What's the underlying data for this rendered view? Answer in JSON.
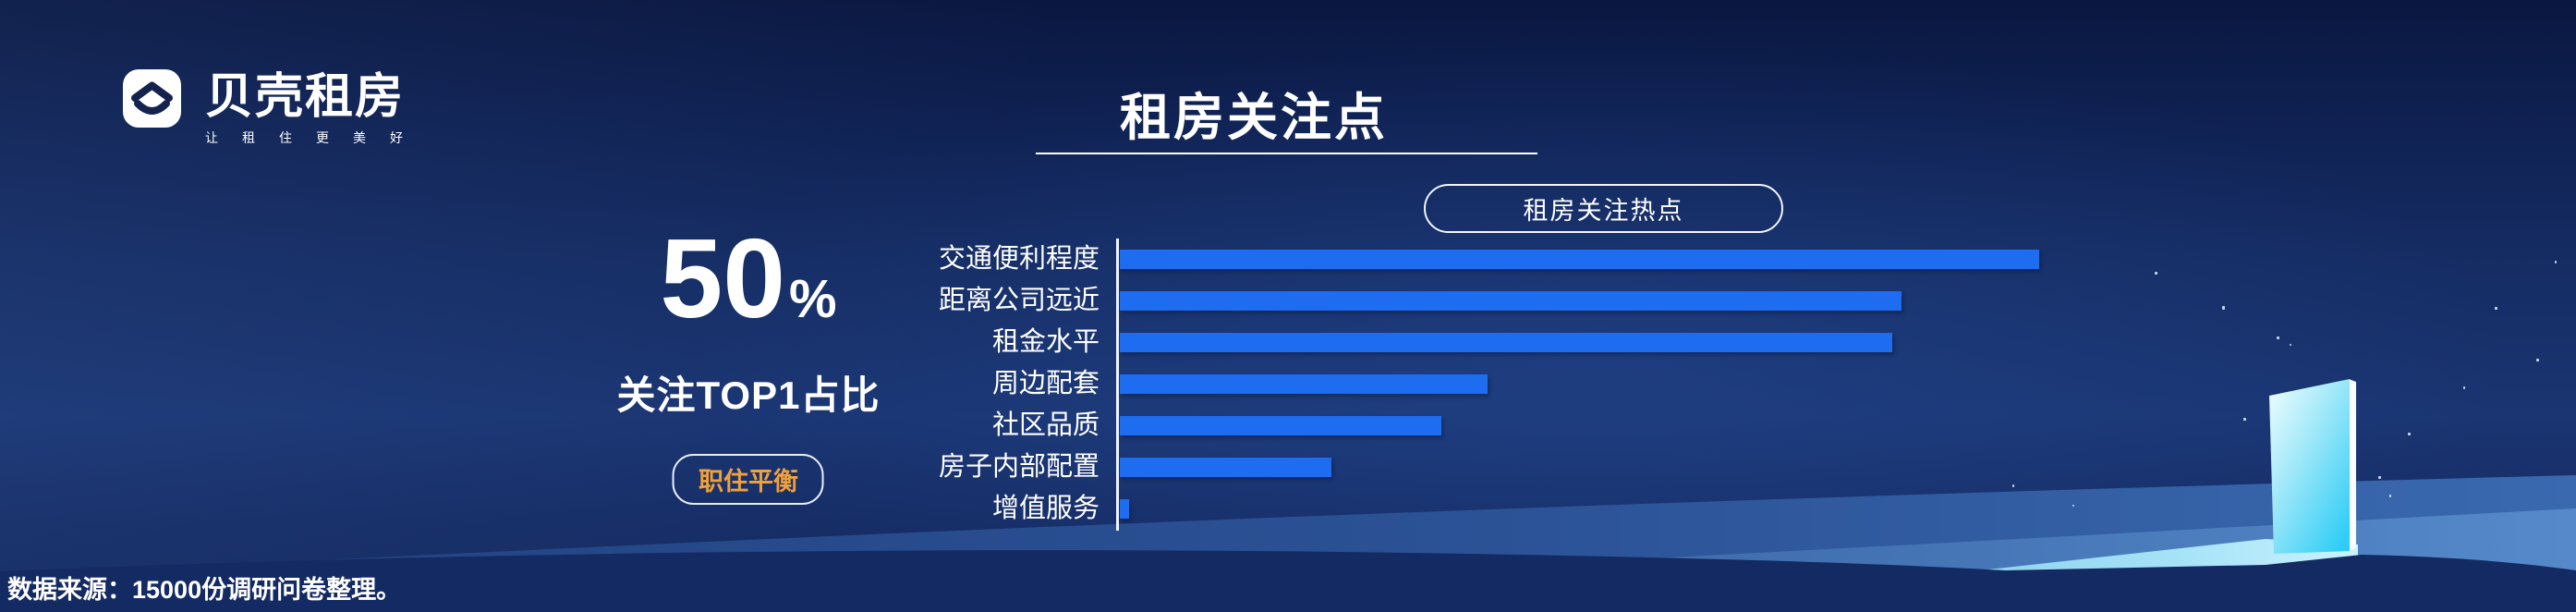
{
  "logo": {
    "name": "贝壳租房",
    "tagline": "让租住更美好",
    "icon": "beike-house-smile-icon"
  },
  "header": {
    "title": "租房关注点"
  },
  "stat": {
    "value": "50",
    "unit": "%",
    "label": "关注TOP1占比",
    "badge": "职住平衡",
    "badge_color": "#f0a03a"
  },
  "chart_data": {
    "type": "bar",
    "orientation": "horizontal",
    "title": "租房关注热点",
    "categories": [
      "交通便利程度",
      "距离公司远近",
      "租金水平",
      "周边配套",
      "社区品质",
      "房子内部配置",
      "增值服务"
    ],
    "values": [
      50,
      42.5,
      42,
      20,
      17.5,
      11.5,
      0.5
    ],
    "unit": "%",
    "value_labels_shown": false,
    "ticks_shown": false,
    "grid": false,
    "bar_color": "#1e6cf0",
    "axis_color": "#ffffff",
    "xlim": [
      0,
      50
    ],
    "note": "values estimated from bar lengths; top bar equals the 50% TOP1 share"
  },
  "footer": {
    "source_note": "数据来源：15000份调研问卷整理。"
  },
  "colors": {
    "background_top": "#0a1740",
    "background_mid": "#1a3572",
    "bar_blue": "#1e6cf0",
    "accent_orange": "#f0a03a",
    "wave_blue": "#2f5ca6",
    "door_cyan": "#3bd0f6",
    "foreground_navy": "#142a62"
  }
}
